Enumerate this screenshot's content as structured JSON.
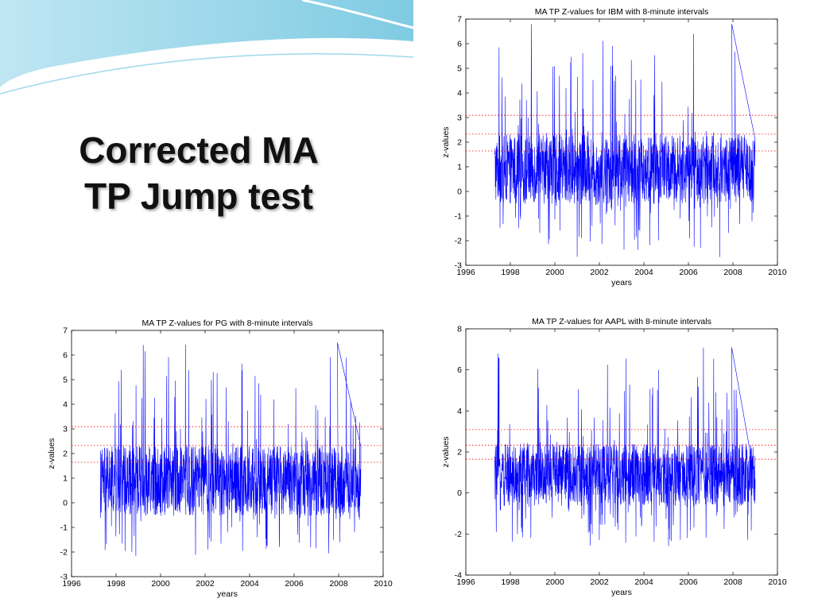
{
  "slide": {
    "title_line1": "Corrected MA",
    "title_line2": "TP Jump test",
    "accent_color": "#8ed1e6"
  },
  "chart_data": [
    {
      "type": "line",
      "title": "MA TP Z-values for IBM with 8-minute intervals",
      "xlabel": "years",
      "ylabel": "z-values",
      "xlim": [
        1996,
        2010
      ],
      "ylim": [
        -3,
        7
      ],
      "xticks": [
        1996,
        1998,
        2000,
        2002,
        2004,
        2006,
        2008,
        2010
      ],
      "yticks": [
        -3,
        -2,
        -1,
        0,
        1,
        2,
        3,
        4,
        5,
        6,
        7
      ],
      "data_x_range": [
        1997.3,
        2009.0
      ],
      "reference_lines": [
        1.645,
        2.326,
        3.09
      ],
      "series_color": "#0000ff",
      "reference_color": "#ff0000",
      "approx_series_profile": {
        "center": 0.6,
        "band_low": -0.5,
        "band_high": 2.3,
        "max": 6.8,
        "min": -2.7
      }
    },
    {
      "type": "line",
      "title": "MA TP Z-values for PG with 8-minute intervals",
      "xlabel": "years",
      "ylabel": "z-values",
      "xlim": [
        1996,
        2010
      ],
      "ylim": [
        -3,
        7
      ],
      "xticks": [
        1996,
        1998,
        2000,
        2002,
        2004,
        2006,
        2008,
        2010
      ],
      "yticks": [
        -3,
        -2,
        -1,
        0,
        1,
        2,
        3,
        4,
        5,
        6,
        7
      ],
      "data_x_range": [
        1997.3,
        2009.0
      ],
      "reference_lines": [
        1.645,
        2.326,
        3.09
      ],
      "series_color": "#0000ff",
      "reference_color": "#ff0000",
      "approx_series_profile": {
        "center": 0.6,
        "band_low": -0.5,
        "band_high": 2.3,
        "max": 6.5,
        "min": -2.5
      }
    },
    {
      "type": "line",
      "title": "MA TP Z-values for AAPL with 8-minute intervals",
      "xlabel": "years",
      "ylabel": "z-values",
      "xlim": [
        1996,
        2010
      ],
      "ylim": [
        -4,
        8
      ],
      "xticks": [
        1996,
        1998,
        2000,
        2002,
        2004,
        2006,
        2008,
        2010
      ],
      "yticks": [
        -4,
        -2,
        0,
        2,
        4,
        6,
        8
      ],
      "data_x_range": [
        1997.3,
        2009.0
      ],
      "reference_lines": [
        1.645,
        2.326,
        3.09
      ],
      "series_color": "#0000ff",
      "reference_color": "#ff0000",
      "approx_series_profile": {
        "center": 0.7,
        "band_low": -0.6,
        "band_high": 2.4,
        "max": 7.1,
        "min": -2.6
      }
    }
  ]
}
